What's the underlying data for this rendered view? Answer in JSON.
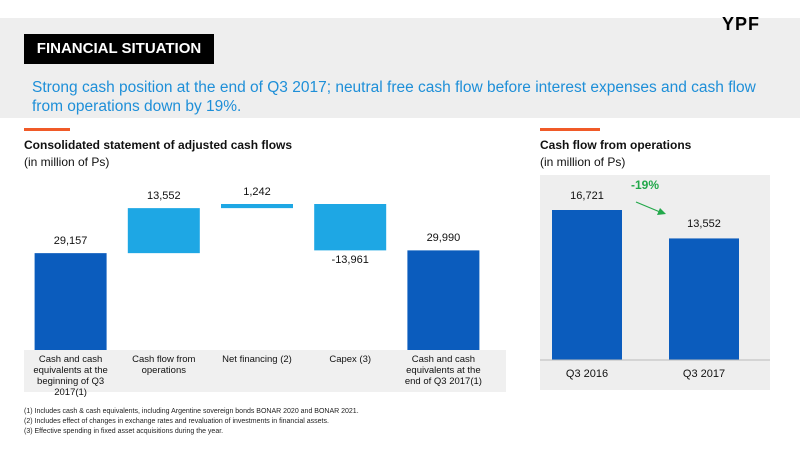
{
  "header": {
    "section_title": "FINANCIAL SITUATION",
    "logo": "YPF",
    "headline": "Strong cash position at the end of Q3 2017; neutral free cash flow before interest expenses and cash flow from operations down by 19%."
  },
  "chart_data": [
    {
      "type": "waterfall",
      "title": "Consolidated statement of adjusted cash flows",
      "subtitle": "(in million of Ps)",
      "categories": [
        "Cash and cash equivalents at the beginning of Q3 2017(1)",
        "Cash flow from operations",
        "Net financing (2)",
        "Capex (3)",
        "Cash and cash equivalents at the end of Q3 2017(1)"
      ],
      "values": [
        29157,
        13552,
        1242,
        -13961,
        29990
      ],
      "value_labels": [
        "29,157",
        "13,552",
        "1,242",
        "-13,961",
        "29,990"
      ],
      "total_color": "#0b5cbd",
      "change_color": "#1ea7e4"
    },
    {
      "type": "bar",
      "title": "Cash flow from operations",
      "subtitle": "(in million of Ps)",
      "categories": [
        "Q3 2016",
        "Q3 2017"
      ],
      "values": [
        16721,
        13552
      ],
      "value_labels": [
        "16,721",
        "13,552"
      ],
      "color": "#0b5cbd",
      "annotation": "-19%",
      "annotation_color": "#22a84a"
    }
  ],
  "footnotes": [
    "(1) Includes cash & cash equivalents, including Argentine sovereign bonds BONAR 2020 and BONAR 2021.",
    "(2) Includes effect of changes in exchange rates and revaluation of investments in financial assets.",
    "(3) Effective spending in fixed asset acquisitions during the year."
  ]
}
